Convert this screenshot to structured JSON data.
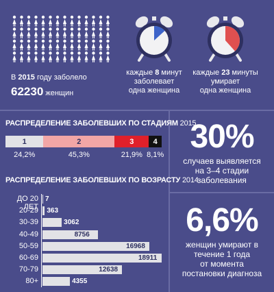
{
  "colors": {
    "background": "#4a4c8a",
    "divider": "#6a6ca4",
    "clock_blue": "#3d63c9",
    "clock_red": "#e05050",
    "stage1": "#e2e2e6",
    "stage2": "#f2a6a6",
    "stage3": "#e0202a",
    "stage4": "#111111",
    "age_bar": "#e2e2e6"
  },
  "icons": {
    "women_grid": "woman-figure-icon",
    "clock_left": "alarm-clock-icon",
    "clock_right": "alarm-clock-icon"
  },
  "women": {
    "line1_prefix": "В ",
    "line1_year": "2015",
    "line1_suffix": " году заболело",
    "number": "62230",
    "number_suffix": " женщин"
  },
  "clock_left": {
    "line1_prefix": "каждые ",
    "line1_num": "8",
    "line1_suffix": " минут",
    "line2": "заболевает",
    "line3": "одна женщина",
    "fill_fraction": 0.133
  },
  "clock_right": {
    "line1_prefix": "каждые ",
    "line1_num": "23",
    "line1_suffix": " минуты",
    "line2": "умирает",
    "line3": "одна женщина",
    "fill_fraction": 0.383
  },
  "stages_title": {
    "main": "РАСПРЕДЕЛЕНИЕ ЗАБОЛЕВШИХ ПО СТАДИЯМ",
    "year": " 2015"
  },
  "age_title": {
    "main": "РАСПРЕДЕЛЕНИЕ ЗАБОЛЕВШИХ ПО ВОЗРАСТУ",
    "year": " 2014"
  },
  "stat1": {
    "value": "30%",
    "line1": "случаев выявляется",
    "line2": "на 3–4 стадии",
    "line3": "заболевания"
  },
  "stat2": {
    "value": "6,6%",
    "line1": "женщин умирают в",
    "line2": "течение 1 года",
    "line3": "от момента",
    "line4": "постановки диагноза"
  },
  "chart_data": [
    {
      "type": "bar",
      "title": "РАСПРЕДЕЛЕНИЕ ЗАБОЛЕВШИХ ПО СТАДИЯМ 2015",
      "categories": [
        "1",
        "2",
        "3",
        "4"
      ],
      "values": [
        24.2,
        45.3,
        21.9,
        8.1
      ],
      "value_labels": [
        "24,2%",
        "45,3%",
        "21,9%",
        "8,1%"
      ],
      "stacked": true,
      "orientation": "horizontal"
    },
    {
      "type": "bar",
      "title": "РАСПРЕДЕЛЕНИЕ ЗАБОЛЕВШИХ ПО ВОЗРАСТУ 2014",
      "orientation": "horizontal",
      "categories": [
        "ДО 20 ЛЕТ",
        "20-29",
        "30-39",
        "40-49",
        "50-59",
        "60-69",
        "70-79",
        "80+"
      ],
      "values": [
        7,
        363,
        3062,
        8756,
        16968,
        18911,
        12638,
        4355
      ],
      "value_labels": [
        "7",
        "363",
        "3062",
        "8756",
        "16968",
        "18911",
        "12638",
        "4355"
      ],
      "xlim": [
        0,
        18911
      ]
    }
  ]
}
